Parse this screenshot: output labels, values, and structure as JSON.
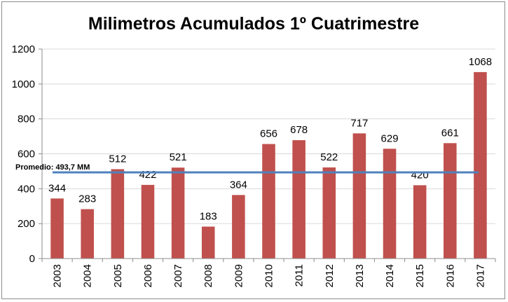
{
  "chart_data": {
    "type": "bar",
    "title": "Milimetros Acumulados 1º Cuatrimestre",
    "categories": [
      "2003",
      "2004",
      "2005",
      "2006",
      "2007",
      "2008",
      "2009",
      "2010",
      "2011",
      "2012",
      "2013",
      "2014",
      "2015",
      "2016",
      "2017"
    ],
    "values": [
      344,
      283,
      512,
      422,
      521,
      183,
      364,
      656,
      678,
      522,
      717,
      629,
      420,
      661,
      1068
    ],
    "ylim": [
      0,
      1200
    ],
    "yticks": [
      0,
      200,
      400,
      600,
      800,
      1000,
      1200
    ],
    "bar_color": "#c0504d",
    "average": {
      "label": "Promedio: 493,7  MM",
      "value": 493.7,
      "color": "#4f81bd"
    },
    "grid": true,
    "legend": "none"
  }
}
